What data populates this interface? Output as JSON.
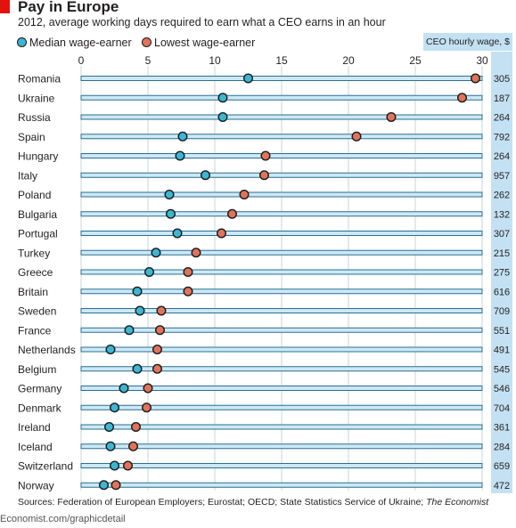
{
  "header": {
    "title": "Pay in Europe",
    "subtitle": "2012, average working days required to earn what a CEO earns in an hour"
  },
  "legend": [
    {
      "label": "Median wage-earner",
      "color": "#3bb6d3"
    },
    {
      "label": "Lowest wage-earner",
      "color": "#e0735a"
    }
  ],
  "ceo_column_label": "CEO hourly wage, $",
  "source": {
    "text": "Sources: Federation of European Employers; Eurostat; OECD; State Statistics Service of Ukraine;",
    "publication": "The Economist"
  },
  "site": "Economist.com/graphicdetail",
  "colors": {
    "median": "#3bb6d3",
    "lowest": "#e0735a",
    "bar_fill": "#cde8f5",
    "bar_stroke": "#2a6f8f",
    "ceo_box": "#c3e1f3",
    "grid": "#c7d4dc",
    "accent": "#e3120b"
  },
  "chart_data": {
    "type": "scatter",
    "x_ticks": [
      0,
      5,
      10,
      15,
      20,
      25,
      30
    ],
    "xlim": [
      0,
      30
    ],
    "grid": true,
    "categories": [
      "Romania",
      "Ukraine",
      "Russia",
      "Spain",
      "Hungary",
      "Italy",
      "Poland",
      "Bulgaria",
      "Portugal",
      "Turkey",
      "Greece",
      "Britain",
      "Sweden",
      "France",
      "Netherlands",
      "Belgium",
      "Germany",
      "Denmark",
      "Ireland",
      "Iceland",
      "Switzerland",
      "Norway"
    ],
    "series": [
      {
        "name": "Median wage-earner",
        "values": [
          12.5,
          10.6,
          10.6,
          7.6,
          7.4,
          9.3,
          6.6,
          6.7,
          7.2,
          5.6,
          5.1,
          4.2,
          4.4,
          3.6,
          2.2,
          4.2,
          3.2,
          2.5,
          2.1,
          2.2,
          2.5,
          1.7
        ]
      },
      {
        "name": "Lowest wage-earner",
        "values": [
          29.5,
          28.5,
          23.2,
          20.6,
          13.8,
          13.7,
          12.2,
          11.3,
          10.5,
          8.6,
          8.0,
          8.0,
          6.0,
          5.9,
          5.7,
          5.7,
          5.0,
          4.9,
          4.1,
          3.9,
          3.5,
          2.6
        ]
      }
    ],
    "ceo_hourly_wage": [
      305,
      187,
      264,
      792,
      264,
      957,
      262,
      132,
      307,
      215,
      275,
      616,
      709,
      551,
      491,
      545,
      546,
      704,
      361,
      284,
      659,
      472
    ]
  }
}
